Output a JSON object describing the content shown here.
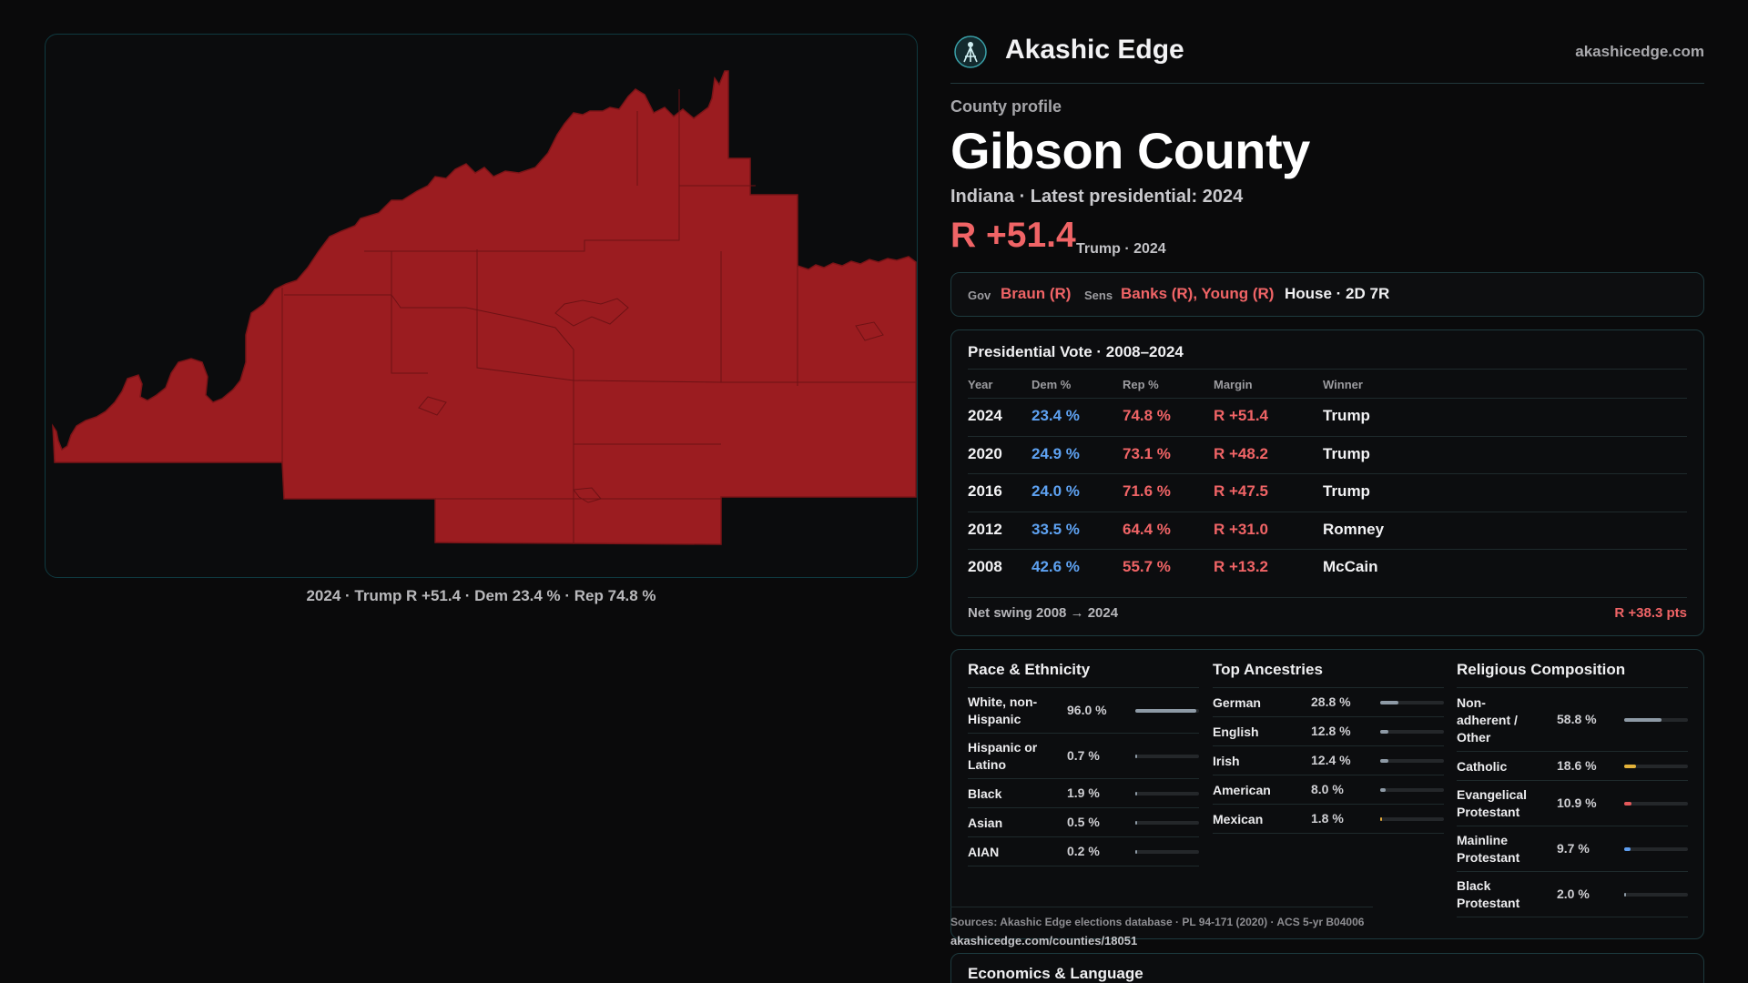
{
  "map": {
    "caption": "2024 · Trump R +51.4 · Dem 23.4 % · Rep 74.8 %",
    "fill_color": "#9b1c20",
    "line_color": "#7a1417"
  },
  "brand": {
    "name": "Akashic Edge",
    "url": "akashicedge.com",
    "logo_icon": "compass-logo-icon"
  },
  "profile": {
    "label": "County profile",
    "title": "Gibson County",
    "subtitle": "Indiana · Latest presidential: 2024",
    "margin": "R +51.4",
    "margin_note": "Trump · 2024"
  },
  "officials": {
    "gov_label": "Gov",
    "gov_value": "Braun (R)",
    "sens_label": "Sens",
    "sens_value": "Banks (R), Young (R)",
    "house": "House · 2D 7R"
  },
  "presidential": {
    "title": "Presidential Vote · 2008–2024",
    "headers": [
      "Year",
      "Dem %",
      "Rep %",
      "Margin",
      "Winner"
    ],
    "rows": [
      {
        "year": "2024",
        "dem": "23.4 %",
        "rep": "74.8 %",
        "margin": "R +51.4",
        "winner": "Trump"
      },
      {
        "year": "2020",
        "dem": "24.9 %",
        "rep": "73.1 %",
        "margin": "R +48.2",
        "winner": "Trump"
      },
      {
        "year": "2016",
        "dem": "24.0 %",
        "rep": "71.6 %",
        "margin": "R +47.5",
        "winner": "Trump"
      },
      {
        "year": "2012",
        "dem": "33.5 %",
        "rep": "64.4 %",
        "margin": "R +31.0",
        "winner": "Romney"
      },
      {
        "year": "2008",
        "dem": "42.6 %",
        "rep": "55.7 %",
        "margin": "R +13.2",
        "winner": "McCain"
      }
    ],
    "swing_label": "Net swing 2008 → 2024",
    "swing_value": "R +38.3 pts"
  },
  "race": {
    "title": "Race & Ethnicity",
    "items": [
      {
        "name": "White, non-\nHispanic",
        "pct": "96.0 %",
        "value": 96.0,
        "color": "#8e9aa6"
      },
      {
        "name": "Hispanic or\nLatino",
        "pct": "0.7 %",
        "value": 0.7,
        "color": "#8e9aa6"
      },
      {
        "name": "Black",
        "pct": "1.9 %",
        "value": 1.9,
        "color": "#8e9aa6"
      },
      {
        "name": "Asian",
        "pct": "0.5 %",
        "value": 0.5,
        "color": "#8e9aa6"
      },
      {
        "name": "AIAN",
        "pct": "0.2 %",
        "value": 0.2,
        "color": "#8e9aa6"
      }
    ]
  },
  "ancestry": {
    "title": "Top Ancestries",
    "items": [
      {
        "name": "German",
        "pct": "28.8 %",
        "value": 28.8,
        "color": "#8e9aa6"
      },
      {
        "name": "English",
        "pct": "12.8 %",
        "value": 12.8,
        "color": "#8e9aa6"
      },
      {
        "name": "Irish",
        "pct": "12.4 %",
        "value": 12.4,
        "color": "#8e9aa6"
      },
      {
        "name": "American",
        "pct": "8.0 %",
        "value": 8.0,
        "color": "#8e9aa6"
      },
      {
        "name": "Mexican",
        "pct": "1.8 %",
        "value": 1.8,
        "color": "#e3a93a"
      }
    ]
  },
  "religion": {
    "title": "Religious Composition",
    "items": [
      {
        "name": "Non-\nadherent /\nOther",
        "pct": "58.8 %",
        "value": 58.8,
        "color": "#8e9aa6"
      },
      {
        "name": "Catholic",
        "pct": "18.6 %",
        "value": 18.6,
        "color": "#e3b23a"
      },
      {
        "name": "Evangelical\nProtestant",
        "pct": "10.9 %",
        "value": 10.9,
        "color": "#e4585a"
      },
      {
        "name": "Mainline\nProtestant",
        "pct": "9.7 %",
        "value": 9.7,
        "color": "#5e9ef0"
      },
      {
        "name": "Black\nProtestant",
        "pct": "2.0 %",
        "value": 2.0,
        "color": "#8e9aa6"
      }
    ]
  },
  "sources": {
    "text": "Sources: Akashic Edge elections database · PL 94-171 (2020) · ACS 5-yr B04006",
    "url": "akashicedge.com/counties/18051"
  },
  "economics": {
    "title": "Economics & Language"
  }
}
